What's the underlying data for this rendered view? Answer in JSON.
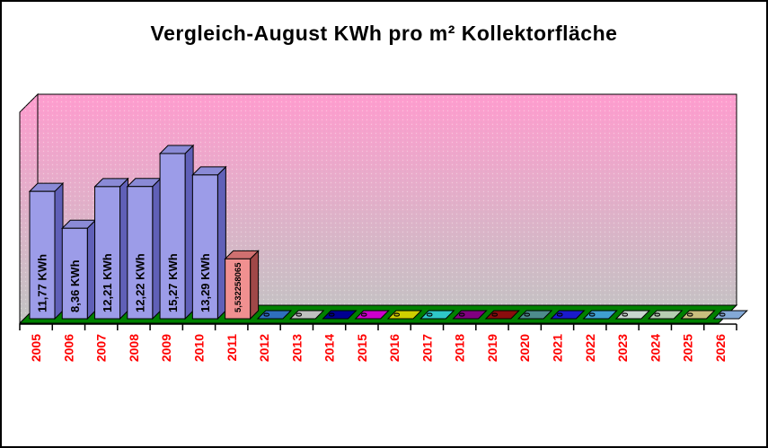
{
  "title": "Vergleich-August KWh pro m² Kollektorfläche",
  "chart_data": {
    "type": "bar",
    "projection": "3d",
    "title": "Vergleich-August KWh pro m² Kollektorfläche",
    "unit": "KWh",
    "xlabel": "",
    "ylabel": "",
    "ylim": [
      0,
      19.5
    ],
    "grid": false,
    "legend": false,
    "categories": [
      "2005",
      "2006",
      "2007",
      "2008",
      "2009",
      "2010",
      "2011",
      "2012",
      "2013",
      "2014",
      "2015",
      "2016",
      "2017",
      "2018",
      "2019",
      "2020",
      "2021",
      "2022",
      "2023",
      "2024",
      "2025",
      "2026"
    ],
    "values": [
      11.77,
      8.36,
      12.21,
      12.22,
      15.27,
      13.29,
      5.532258065,
      0,
      0,
      0,
      0,
      0,
      0,
      0,
      0,
      0,
      0,
      0,
      0,
      0,
      0,
      0
    ],
    "bars": [
      {
        "year": "2005",
        "value": 11.77,
        "label": "11,77 KWh",
        "front": "#9C9CE8",
        "side": "#6060B8",
        "top": "#8A8AD6"
      },
      {
        "year": "2006",
        "value": 8.36,
        "label": "8,36 KWh",
        "front": "#9C9CE8",
        "side": "#6060B8",
        "top": "#8A8AD6"
      },
      {
        "year": "2007",
        "value": 12.21,
        "label": "12,21 KWh",
        "front": "#9C9CE8",
        "side": "#6060B8",
        "top": "#8A8AD6"
      },
      {
        "year": "2008",
        "value": 12.22,
        "label": "12,22 KWh",
        "front": "#9C9CE8",
        "side": "#6060B8",
        "top": "#8A8AD6"
      },
      {
        "year": "2009",
        "value": 15.27,
        "label": "15,27 KWh",
        "front": "#9C9CE8",
        "side": "#6060B8",
        "top": "#8A8AD6"
      },
      {
        "year": "2010",
        "value": 13.29,
        "label": "13,29 KWh",
        "front": "#9C9CE8",
        "side": "#6060B8",
        "top": "#8A8AD6"
      },
      {
        "year": "2011",
        "value": 5.532258065,
        "label": "5,532258065",
        "front": "#F09090",
        "side": "#A04848",
        "top": "#D07070"
      },
      {
        "year": "2012",
        "value": 0,
        "label": "0",
        "front": "#2F6FBE",
        "side": "#2F6FBE",
        "top": "#2F6FBE"
      },
      {
        "year": "2013",
        "value": 0,
        "label": "0",
        "front": "#C0C0C0",
        "side": "#C0C0C0",
        "top": "#C0C0C0"
      },
      {
        "year": "2014",
        "value": 0,
        "label": "0",
        "front": "#000090",
        "side": "#000090",
        "top": "#000090"
      },
      {
        "year": "2015",
        "value": 0,
        "label": "0",
        "front": "#CC00CC",
        "side": "#CC00CC",
        "top": "#CC00CC"
      },
      {
        "year": "2016",
        "value": 0,
        "label": "0",
        "front": "#CFCF00",
        "side": "#CFCF00",
        "top": "#CFCF00"
      },
      {
        "year": "2017",
        "value": 0,
        "label": "0",
        "front": "#2FC8C8",
        "side": "#2FC8C8",
        "top": "#2FC8C8"
      },
      {
        "year": "2018",
        "value": 0,
        "label": "0",
        "front": "#800080",
        "side": "#800080",
        "top": "#800080"
      },
      {
        "year": "2019",
        "value": 0,
        "label": "0",
        "front": "#8B0D0D",
        "side": "#8B0D0D",
        "top": "#8B0D0D"
      },
      {
        "year": "2020",
        "value": 0,
        "label": "0",
        "front": "#4D8C8C",
        "side": "#4D8C8C",
        "top": "#4D8C8C"
      },
      {
        "year": "2021",
        "value": 0,
        "label": "0",
        "front": "#1A1ACC",
        "side": "#1A1ACC",
        "top": "#1A1ACC"
      },
      {
        "year": "2022",
        "value": 0,
        "label": "0",
        "front": "#3F9FD0",
        "side": "#3F9FD0",
        "top": "#3F9FD0"
      },
      {
        "year": "2023",
        "value": 0,
        "label": "0",
        "front": "#C8D6CE",
        "side": "#C8D6CE",
        "top": "#C8D6CE"
      },
      {
        "year": "2024",
        "value": 0,
        "label": "0",
        "front": "#B6CDB2",
        "side": "#B6CDB2",
        "top": "#B6CDB2"
      },
      {
        "year": "2025",
        "value": 0,
        "label": "0",
        "front": "#C9BF7E",
        "side": "#C9BF7E",
        "top": "#C9BF7E"
      },
      {
        "year": "2026",
        "value": 0,
        "label": "0",
        "front": "#84A9D6",
        "side": "#84A9D6",
        "top": "#84A9D6"
      }
    ]
  },
  "colors": {
    "background": "#FFFFFF",
    "border": "#000000",
    "wall_top": "#FF9CCE",
    "wall_bottom": "#C3C3C3",
    "floor": "#008000",
    "outline": "#000000",
    "x_label": "#FF0000",
    "value_label": "#000000"
  }
}
